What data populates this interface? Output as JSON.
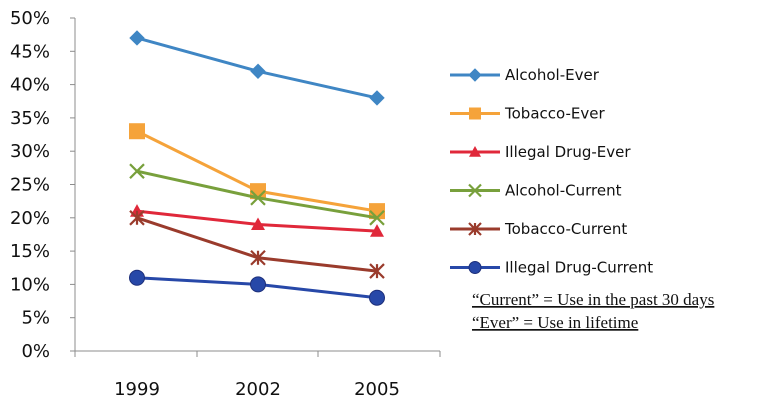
{
  "chart_data": {
    "type": "line",
    "title": "",
    "xlabel": "",
    "ylabel": "",
    "categories": [
      "1999",
      "2002",
      "2005"
    ],
    "ylim": [
      0,
      50
    ],
    "yticks": [
      "0%",
      "5%",
      "10%",
      "15%",
      "20%",
      "25%",
      "30%",
      "35%",
      "40%",
      "45%",
      "50%"
    ],
    "grid": false,
    "legend_position": "right",
    "series": [
      {
        "name": "Alcohol-Ever",
        "values": [
          47,
          42,
          38
        ],
        "color": "#3f86c4",
        "marker": "diamond"
      },
      {
        "name": "Tobacco-Ever",
        "values": [
          33,
          24,
          21
        ],
        "color": "#f5a33a",
        "marker": "square"
      },
      {
        "name": "Illegal Drug-Ever",
        "values": [
          21,
          19,
          18
        ],
        "color": "#e0283a",
        "marker": "triangle"
      },
      {
        "name": "Alcohol-Current",
        "values": [
          27,
          23,
          20
        ],
        "color": "#78a03c",
        "marker": "x"
      },
      {
        "name": "Tobacco-Current",
        "values": [
          20,
          14,
          12
        ],
        "color": "#9a3b2c",
        "marker": "star"
      },
      {
        "name": "Illegal Drug-Current",
        "values": [
          11,
          10,
          8
        ],
        "color": "#2748a8",
        "marker": "circle"
      }
    ],
    "annotations": [
      "“Current” = Use in the past 30 days",
      "“Ever” = Use in lifetime"
    ]
  }
}
